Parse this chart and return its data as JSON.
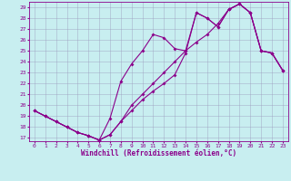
{
  "xlabel": "Windchill (Refroidissement éolien,°C)",
  "bg_color": "#c8eef0",
  "line_color": "#8b008b",
  "grid_color": "#9999bb",
  "xlim": [
    -0.5,
    23.5
  ],
  "ylim": [
    16.7,
    29.5
  ],
  "xticks": [
    0,
    1,
    2,
    3,
    4,
    5,
    6,
    7,
    8,
    9,
    10,
    11,
    12,
    13,
    14,
    15,
    16,
    17,
    18,
    19,
    20,
    21,
    22,
    23
  ],
  "yticks": [
    17,
    18,
    19,
    20,
    21,
    22,
    23,
    24,
    25,
    26,
    27,
    28,
    29
  ],
  "line1_x": [
    0,
    1,
    2,
    3,
    4,
    5,
    6,
    7,
    8,
    9,
    10,
    11,
    12,
    13,
    14,
    15,
    16,
    17,
    18,
    19,
    20,
    21,
    22,
    23
  ],
  "line1_y": [
    19.5,
    19.0,
    18.5,
    18.0,
    17.5,
    17.2,
    16.8,
    17.3,
    18.5,
    19.5,
    20.5,
    21.3,
    22.0,
    22.8,
    24.8,
    28.5,
    28.0,
    27.2,
    28.8,
    29.3,
    28.5,
    25.0,
    24.8,
    23.2
  ],
  "line2_x": [
    0,
    1,
    2,
    3,
    4,
    5,
    6,
    7,
    8,
    9,
    10,
    11,
    12,
    13,
    14,
    15,
    16,
    17,
    18,
    19,
    20,
    21,
    22,
    23
  ],
  "line2_y": [
    19.5,
    19.0,
    18.5,
    18.0,
    17.5,
    17.2,
    16.8,
    18.8,
    22.2,
    23.8,
    25.0,
    26.5,
    26.2,
    25.2,
    25.0,
    28.5,
    28.0,
    27.2,
    28.8,
    29.3,
    28.5,
    25.0,
    24.8,
    23.2
  ],
  "line3_x": [
    0,
    1,
    2,
    3,
    4,
    5,
    6,
    7,
    8,
    9,
    10,
    11,
    12,
    13,
    14,
    15,
    16,
    17,
    18,
    19,
    20,
    21,
    22,
    23
  ],
  "line3_y": [
    19.5,
    19.0,
    18.5,
    18.0,
    17.5,
    17.2,
    16.8,
    17.3,
    18.5,
    20.0,
    21.0,
    22.0,
    23.0,
    24.0,
    25.0,
    25.8,
    26.5,
    27.5,
    28.8,
    29.3,
    28.5,
    25.0,
    24.8,
    23.2
  ],
  "xlabel_fontsize": 5.5,
  "tick_fontsize": 4.5,
  "marker_size": 2.0,
  "linewidth": 0.8
}
